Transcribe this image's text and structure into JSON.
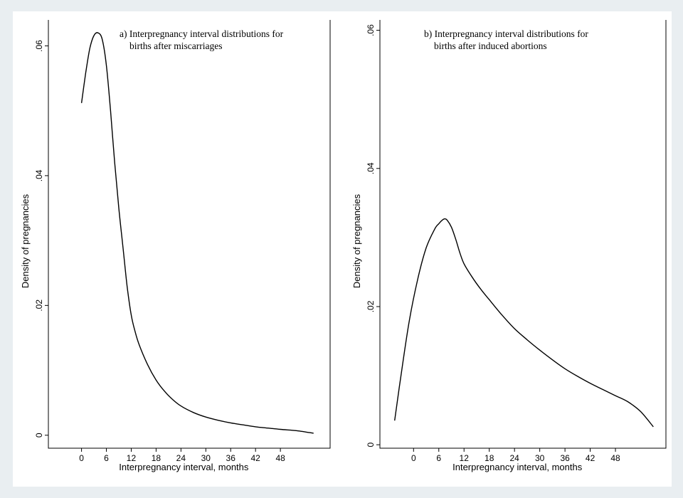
{
  "chart_data": [
    {
      "type": "line",
      "title_lines": [
        "a) Interpregnancy interval distributions for",
        "births after miscarriages"
      ],
      "xlabel": "Interpregnancy interval, months",
      "ylabel": "Density of pregnancies",
      "xticks": [
        0,
        6,
        12,
        18,
        24,
        30,
        36,
        42,
        48
      ],
      "yticks": [
        {
          "v": 0,
          "label": "0"
        },
        {
          "v": 0.02,
          "label": ".02"
        },
        {
          "v": 0.04,
          "label": ".04"
        },
        {
          "v": 0.06,
          "label": ".06"
        }
      ],
      "xlim": [
        -8,
        60
      ],
      "ylim": [
        -0.002,
        0.064
      ],
      "series": [
        {
          "x": [
            0,
            1,
            2,
            3,
            4,
            5,
            6,
            7,
            8,
            9,
            10,
            11,
            12,
            13,
            14,
            16,
            18,
            20,
            22,
            24,
            27,
            30,
            33,
            36,
            39,
            42,
            45,
            48,
            52,
            56
          ],
          "y": [
            0.0512,
            0.0558,
            0.0596,
            0.0616,
            0.062,
            0.061,
            0.057,
            0.05,
            0.042,
            0.035,
            0.029,
            0.023,
            0.0185,
            0.0158,
            0.0138,
            0.0108,
            0.0085,
            0.0068,
            0.0055,
            0.0045,
            0.0035,
            0.0028,
            0.0023,
            0.0019,
            0.0016,
            0.0013,
            0.0011,
            0.0009,
            0.0007,
            0.0003
          ]
        }
      ]
    },
    {
      "type": "line",
      "title_lines": [
        "b) Interpregnancy interval distributions for",
        "births after induced abortions"
      ],
      "xlabel": "Interpregnancy interval, months",
      "ylabel": "Density of pregnancies",
      "xticks": [
        0,
        6,
        12,
        18,
        24,
        30,
        36,
        42,
        48
      ],
      "yticks": [
        {
          "v": 0,
          "label": "0"
        },
        {
          "v": 0.02,
          "label": ".02"
        },
        {
          "v": 0.04,
          "label": ".04"
        },
        {
          "v": 0.06,
          "label": ".06"
        }
      ],
      "xlim": [
        -8,
        60
      ],
      "ylim": [
        -0.0005,
        0.0615
      ],
      "series": [
        {
          "x": [
            -4.5,
            -3,
            -1,
            1,
            3,
            5,
            6,
            7,
            7.5,
            8,
            9,
            10,
            11,
            12,
            14,
            16,
            18,
            21,
            24,
            27,
            30,
            33,
            36,
            39,
            42,
            45,
            48,
            51,
            54,
            57
          ],
          "y": [
            0.0035,
            0.01,
            0.018,
            0.024,
            0.0285,
            0.0312,
            0.032,
            0.0326,
            0.0327,
            0.0325,
            0.0315,
            0.0298,
            0.0278,
            0.0262,
            0.0242,
            0.0225,
            0.021,
            0.0188,
            0.0168,
            0.0152,
            0.0137,
            0.0123,
            0.011,
            0.0099,
            0.0089,
            0.008,
            0.0071,
            0.0062,
            0.0048,
            0.0026
          ]
        }
      ]
    }
  ]
}
